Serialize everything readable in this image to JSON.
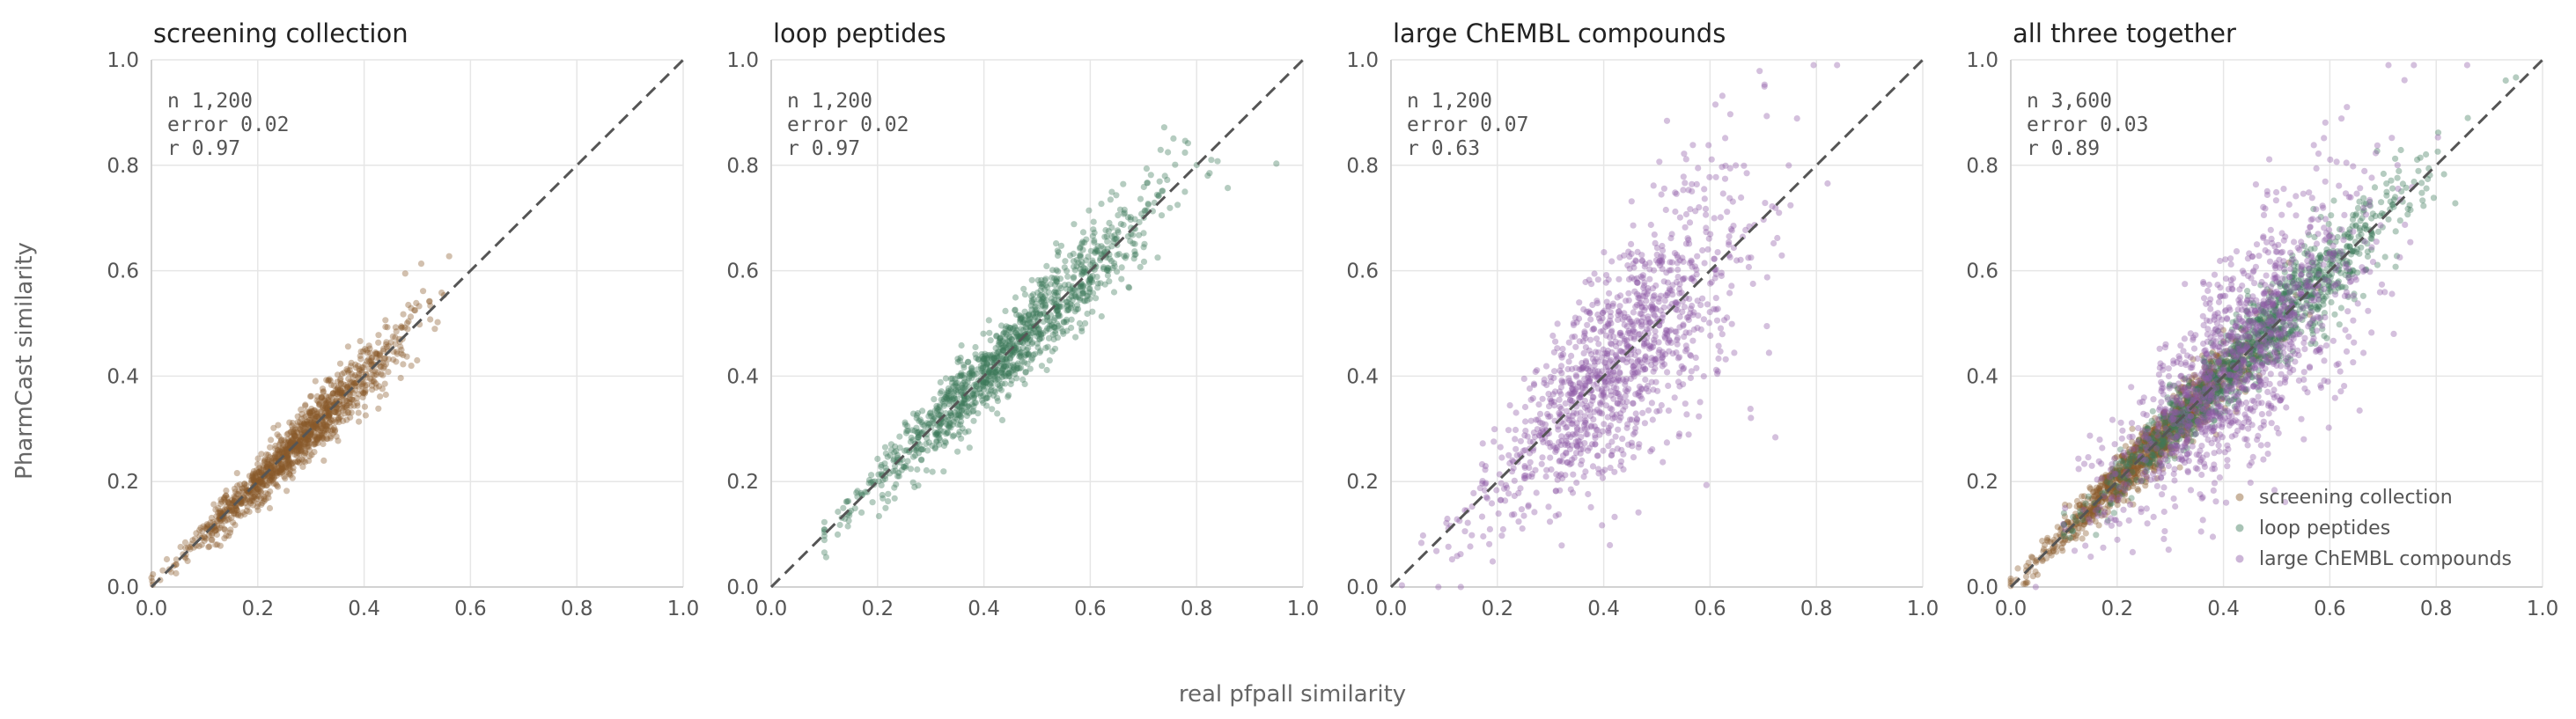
{
  "figure": {
    "xlabel": "real pfpall similarity",
    "ylabel": "PharmCast similarity"
  },
  "colors": {
    "screening": "#8a5a2b",
    "peptides": "#3d7a5a",
    "chembl": "#8e5aa6"
  },
  "chart_data": [
    {
      "type": "scatter",
      "title": "screening collection",
      "xlim": [
        0,
        1
      ],
      "ylim": [
        0,
        1
      ],
      "ticks": [
        "0.0",
        "0.2",
        "0.4",
        "0.6",
        "0.8",
        "1.0"
      ],
      "grid": true,
      "stats": [
        "n 1,200",
        "error 0.02",
        "r 0.97"
      ],
      "series": [
        {
          "key": "screening",
          "n": 1200,
          "x_center": 0.27,
          "x_spread": 0.1,
          "x_min": 0.0,
          "x_max": 0.75,
          "noise": 0.035,
          "slope": 1.0,
          "intercept": 0.0
        }
      ],
      "diagonal": true
    },
    {
      "type": "scatter",
      "title": "loop peptides",
      "xlim": [
        0,
        1
      ],
      "ylim": [
        0,
        1
      ],
      "ticks": [
        "0.0",
        "0.2",
        "0.4",
        "0.6",
        "0.8",
        "1.0"
      ],
      "grid": true,
      "stats": [
        "n 1,200",
        "error 0.02",
        "r 0.97"
      ],
      "series": [
        {
          "key": "peptides",
          "n": 1200,
          "x_center": 0.45,
          "x_spread": 0.14,
          "x_min": 0.1,
          "x_max": 0.95,
          "noise": 0.04,
          "slope": 1.0,
          "intercept": 0.0
        }
      ],
      "diagonal": true
    },
    {
      "type": "scatter",
      "title": "large ChEMBL compounds",
      "xlim": [
        0,
        1
      ],
      "ylim": [
        0,
        1
      ],
      "ticks": [
        "0.0",
        "0.2",
        "0.4",
        "0.6",
        "0.8",
        "1.0"
      ],
      "grid": true,
      "stats": [
        "n 1,200",
        "error 0.07",
        "r 0.63"
      ],
      "series": [
        {
          "key": "chembl",
          "n": 1200,
          "x_center": 0.43,
          "x_spread": 0.12,
          "x_min": 0.0,
          "x_max": 0.86,
          "noise": 0.11,
          "slope": 1.0,
          "intercept": 0.0
        }
      ],
      "diagonal": true
    },
    {
      "type": "scatter",
      "title": "all three together",
      "xlim": [
        0,
        1
      ],
      "ylim": [
        0,
        1
      ],
      "ticks": [
        "0.0",
        "0.2",
        "0.4",
        "0.6",
        "0.8",
        "1.0"
      ],
      "grid": true,
      "stats": [
        "n 3,600",
        "error 0.03",
        "r 0.89"
      ],
      "series": [
        {
          "key": "screening",
          "name": "screening collection",
          "n": 1200,
          "x_center": 0.27,
          "x_spread": 0.1,
          "x_min": 0.0,
          "x_max": 0.75,
          "noise": 0.035,
          "slope": 1.0,
          "intercept": 0.0
        },
        {
          "key": "peptides",
          "name": "loop peptides",
          "n": 1200,
          "x_center": 0.45,
          "x_spread": 0.14,
          "x_min": 0.1,
          "x_max": 0.95,
          "noise": 0.04,
          "slope": 1.0,
          "intercept": 0.0
        },
        {
          "key": "chembl",
          "name": "large ChEMBL compounds",
          "n": 1200,
          "x_center": 0.43,
          "x_spread": 0.12,
          "x_min": 0.0,
          "x_max": 0.86,
          "noise": 0.11,
          "slope": 1.0,
          "intercept": 0.0
        }
      ],
      "diagonal": true,
      "legend": "bottom-right"
    }
  ]
}
